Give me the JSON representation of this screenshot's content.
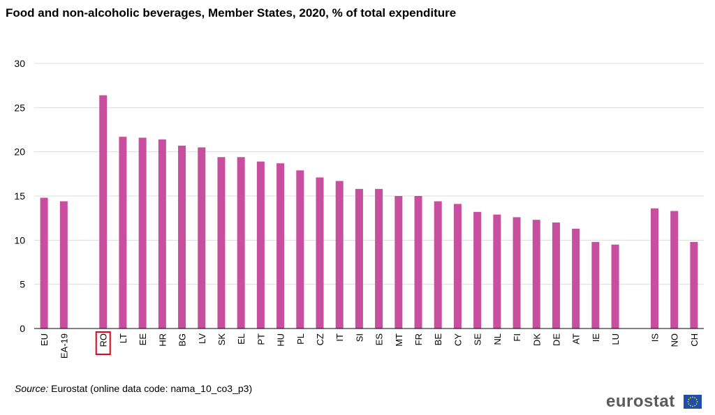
{
  "chart_data": {
    "type": "bar",
    "title": "Food and non-alcoholic beverages, Member States, 2020, % of total expenditure",
    "xlabel": "",
    "ylabel": "",
    "ylim": [
      0,
      30
    ],
    "yticks": [
      0,
      5,
      10,
      15,
      20,
      25,
      30
    ],
    "grid": true,
    "highlight": "RO",
    "categories": [
      "EU",
      "EA-19",
      "",
      "RO",
      "LT",
      "EE",
      "HR",
      "BG",
      "LV",
      "SK",
      "EL",
      "PT",
      "HU",
      "PL",
      "CZ",
      "IT",
      "SI",
      "ES",
      "MT",
      "FR",
      "BE",
      "CY",
      "SE",
      "NL",
      "FI",
      "DK",
      "DE",
      "AT",
      "IE",
      "LU",
      "",
      "IS",
      "NO",
      "CH"
    ],
    "values": [
      14.8,
      14.4,
      null,
      26.4,
      21.7,
      21.6,
      21.4,
      20.7,
      20.5,
      19.4,
      19.4,
      18.9,
      18.7,
      17.9,
      17.1,
      16.7,
      15.8,
      15.8,
      15.0,
      15.0,
      14.4,
      14.1,
      13.2,
      12.9,
      12.6,
      12.3,
      12.0,
      11.3,
      9.8,
      9.5,
      null,
      13.6,
      13.3,
      9.8
    ],
    "colors": {
      "bar": "#c84f9f",
      "grid": "#dcdcdc",
      "highlight_box": "#e2001a"
    }
  },
  "source": {
    "label": "Source:",
    "text": " Eurostat (online data code: nama_10_co3_p3)"
  },
  "brand": {
    "name": "eurostat",
    "logo": "eu-flag-icon"
  }
}
